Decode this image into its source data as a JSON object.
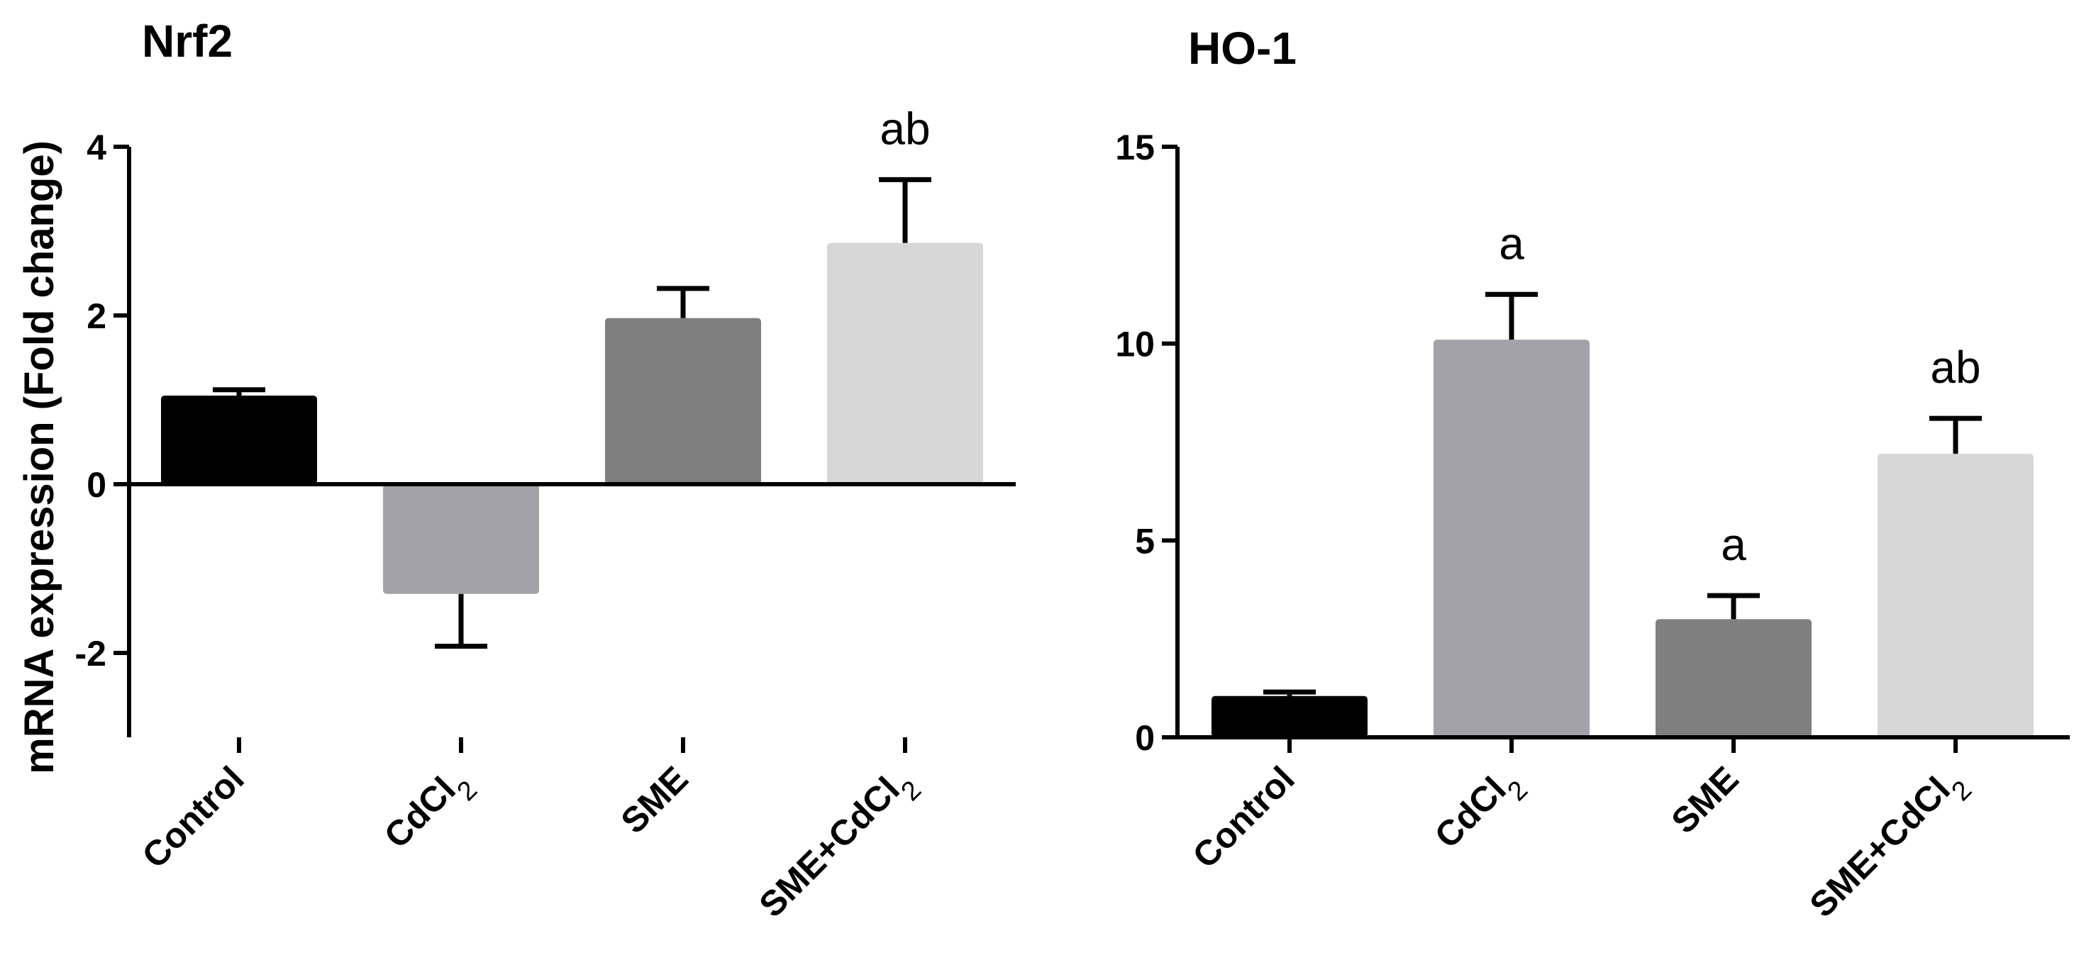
{
  "ylabel": "mRNA expression (Fold change)",
  "chart_data": [
    {
      "type": "bar",
      "title": "Nrf2",
      "ylabel": "mRNA expression (Fold change)",
      "categories": [
        "Control",
        "CdCl2",
        "SME",
        "SME+CdCl2"
      ],
      "category_labels": [
        {
          "main": "Control",
          "sub": ""
        },
        {
          "main": "CdCl",
          "sub": "2"
        },
        {
          "main": "SME",
          "sub": ""
        },
        {
          "main": "SME+CdCl",
          "sub": "2"
        }
      ],
      "values": [
        1.05,
        -1.3,
        1.97,
        2.86
      ],
      "errors": [
        0.07,
        0.62,
        0.35,
        0.75
      ],
      "annotations": [
        "",
        "",
        "",
        "ab"
      ],
      "yticks": [
        -2,
        0,
        2,
        4
      ],
      "ylim": [
        -3,
        4
      ],
      "colors": [
        "#000000",
        "#a3a2a8",
        "#7f7f7f",
        "#d7d7d7"
      ],
      "grid": false,
      "legend": "none"
    },
    {
      "type": "bar",
      "title": "HO-1",
      "ylabel": "",
      "categories": [
        "Control",
        "CdCl2",
        "SME",
        "SME+CdCl2"
      ],
      "category_labels": [
        {
          "main": "Control",
          "sub": ""
        },
        {
          "main": "CdCl",
          "sub": "2"
        },
        {
          "main": "SME",
          "sub": ""
        },
        {
          "main": "SME+CdCl",
          "sub": "2"
        }
      ],
      "values": [
        1.05,
        10.1,
        3.0,
        7.2
      ],
      "errors": [
        0.1,
        1.15,
        0.6,
        0.9
      ],
      "annotations": [
        "",
        "a",
        "a",
        "ab"
      ],
      "yticks": [
        0,
        5,
        10,
        15
      ],
      "ylim": [
        0,
        15
      ],
      "colors": [
        "#000000",
        "#a3a2a8",
        "#7f7f7f",
        "#d7d7d7"
      ],
      "grid": false,
      "legend": "none"
    }
  ]
}
